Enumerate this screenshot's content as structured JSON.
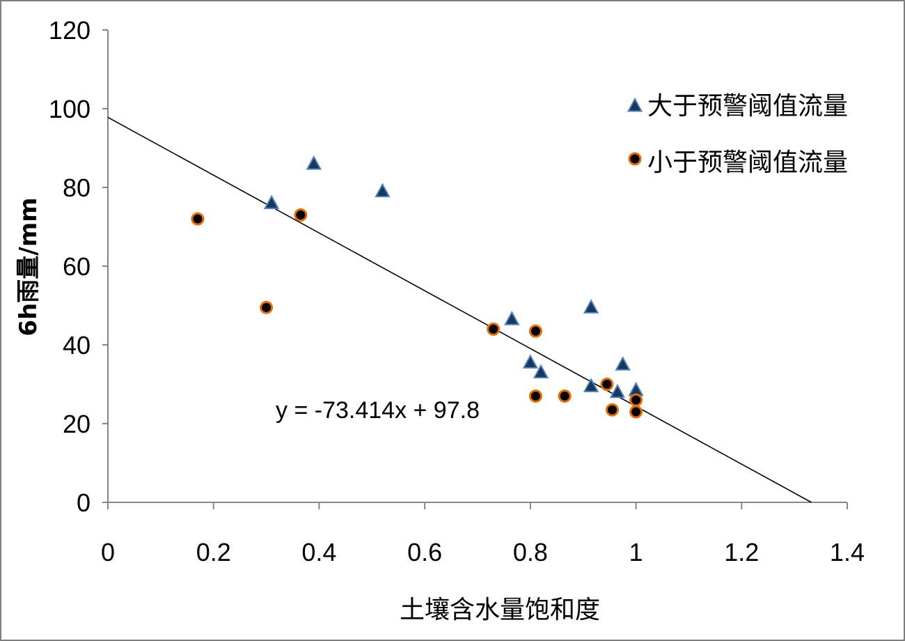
{
  "chart_data": {
    "type": "scatter",
    "xlabel": "土壤含水量饱和度",
    "ylabel": "6h雨量/mm",
    "xlim": [
      0,
      1.4
    ],
    "ylim": [
      0,
      120
    ],
    "x_ticks": [
      "0",
      "0.2",
      "0.4",
      "0.6",
      "0.8",
      "1",
      "1.2",
      "1.4"
    ],
    "y_ticks": [
      "0",
      "20",
      "40",
      "60",
      "80",
      "100",
      "120"
    ],
    "grid": false,
    "legend_position": "top-right",
    "series": [
      {
        "name": "大于预警阈值流量",
        "marker": "triangle",
        "color": "#17375e",
        "edge_color": "#4f81bd",
        "points": [
          [
            0.31,
            76
          ],
          [
            0.39,
            86
          ],
          [
            0.52,
            79
          ],
          [
            0.765,
            46.5
          ],
          [
            0.8,
            35.5
          ],
          [
            0.82,
            33
          ],
          [
            0.915,
            49.5
          ],
          [
            0.915,
            29.5
          ],
          [
            0.965,
            28
          ],
          [
            0.975,
            35
          ],
          [
            1.0,
            28.5
          ]
        ]
      },
      {
        "name": "小于预警阈值流量",
        "marker": "circle",
        "color": "#000000",
        "edge_color": "#e46c0a",
        "points": [
          [
            0.17,
            72
          ],
          [
            0.3,
            49.5
          ],
          [
            0.365,
            73
          ],
          [
            0.73,
            44
          ],
          [
            0.81,
            43.5
          ],
          [
            0.81,
            27
          ],
          [
            0.865,
            27
          ],
          [
            0.945,
            30
          ],
          [
            0.955,
            23.5
          ],
          [
            1.0,
            26
          ],
          [
            1.0,
            23
          ]
        ]
      }
    ],
    "trendline": {
      "slope": -73.414,
      "intercept": 97.8,
      "color": "#000000",
      "equation_label": "y = -73.414x + 97.8"
    }
  }
}
